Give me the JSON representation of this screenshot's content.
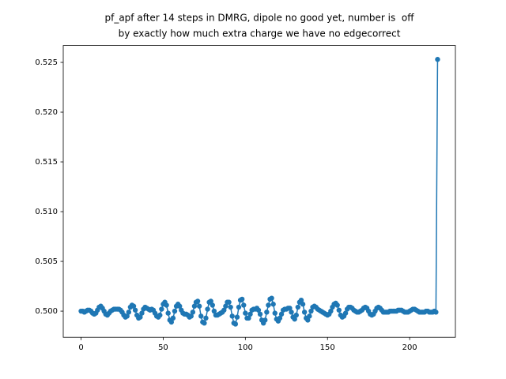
{
  "chart_data": {
    "type": "line",
    "title": [
      "pf_apf after 14 steps in DMRG, dipole no good yet, number is  off",
      "by exactly how much extra charge we have no edgecorrect"
    ],
    "color": "#1f77b4",
    "marker": true,
    "xlim": [
      -10.85,
      227.85
    ],
    "xticks": [
      0,
      50,
      100,
      150,
      200
    ],
    "ylim": [
      0.49737,
      0.5267
    ],
    "yticks": [
      {
        "value": 0.5,
        "label": "0.500"
      },
      0.505,
      {
        "value": 0.51,
        "label": "0.510"
      },
      0.515,
      {
        "value": 0.52,
        "label": "0.520"
      },
      0.525
    ],
    "x": [
      0,
      1,
      2,
      3,
      4,
      5,
      6,
      7,
      8,
      9,
      10,
      11,
      12,
      13,
      14,
      15,
      16,
      17,
      18,
      19,
      20,
      21,
      22,
      23,
      24,
      25,
      26,
      27,
      28,
      29,
      30,
      31,
      32,
      33,
      34,
      35,
      36,
      37,
      38,
      39,
      40,
      41,
      42,
      43,
      44,
      45,
      46,
      47,
      48,
      49,
      50,
      51,
      52,
      53,
      54,
      55,
      56,
      57,
      58,
      59,
      60,
      61,
      62,
      63,
      64,
      65,
      66,
      67,
      68,
      69,
      70,
      71,
      72,
      73,
      74,
      75,
      76,
      77,
      78,
      79,
      80,
      81,
      82,
      83,
      84,
      85,
      86,
      87,
      88,
      89,
      90,
      91,
      92,
      93,
      94,
      95,
      96,
      97,
      98,
      99,
      100,
      101,
      102,
      103,
      104,
      105,
      106,
      107,
      108,
      109,
      110,
      111,
      112,
      113,
      114,
      115,
      116,
      117,
      118,
      119,
      120,
      121,
      122,
      123,
      124,
      125,
      126,
      127,
      128,
      129,
      130,
      131,
      132,
      133,
      134,
      135,
      136,
      137,
      138,
      139,
      140,
      141,
      142,
      143,
      144,
      145,
      146,
      147,
      148,
      149,
      150,
      151,
      152,
      153,
      154,
      155,
      156,
      157,
      158,
      159,
      160,
      161,
      162,
      163,
      164,
      165,
      166,
      167,
      168,
      169,
      170,
      171,
      172,
      173,
      174,
      175,
      176,
      177,
      178,
      179,
      180,
      181,
      182,
      183,
      184,
      185,
      186,
      187,
      188,
      189,
      190,
      191,
      192,
      193,
      194,
      195,
      196,
      197,
      198,
      199,
      200,
      201,
      202,
      203,
      204,
      205,
      206,
      207,
      208,
      209,
      210,
      211,
      212,
      213,
      214,
      215,
      216,
      217
    ],
    "values": [
      0.5,
      0.5,
      0.4999,
      0.5,
      0.5001,
      0.5001,
      0.5,
      0.4998,
      0.4997,
      0.4998,
      0.5001,
      0.5004,
      0.5005,
      0.5003,
      0.5,
      0.4997,
      0.4996,
      0.4998,
      0.5,
      0.5001,
      0.5002,
      0.5002,
      0.5002,
      0.5002,
      0.5001,
      0.4999,
      0.4996,
      0.4994,
      0.4995,
      0.4999,
      0.5004,
      0.5006,
      0.5005,
      0.5001,
      0.4996,
      0.4993,
      0.4994,
      0.4998,
      0.5002,
      0.5004,
      0.5003,
      0.5002,
      0.5001,
      0.5002,
      0.5001,
      0.4998,
      0.4995,
      0.4994,
      0.4996,
      0.5002,
      0.5007,
      0.5009,
      0.5006,
      0.4998,
      0.4991,
      0.4989,
      0.4993,
      0.5,
      0.5005,
      0.5007,
      0.5005,
      0.5001,
      0.4998,
      0.4997,
      0.4997,
      0.4996,
      0.4994,
      0.4995,
      0.4999,
      0.5005,
      0.5009,
      0.501,
      0.5005,
      0.4995,
      0.4989,
      0.4988,
      0.4993,
      0.5002,
      0.5009,
      0.501,
      0.5006,
      0.5,
      0.4996,
      0.4996,
      0.4997,
      0.4998,
      0.4999,
      0.5001,
      0.5005,
      0.5009,
      0.5009,
      0.5004,
      0.4995,
      0.4988,
      0.4987,
      0.4994,
      0.5004,
      0.5011,
      0.5012,
      0.5006,
      0.4998,
      0.4993,
      0.4993,
      0.4997,
      0.5001,
      0.5002,
      0.5002,
      0.5003,
      0.5001,
      0.4997,
      0.4991,
      0.4988,
      0.4991,
      0.4999,
      0.5006,
      0.5012,
      0.5013,
      0.5007,
      0.4998,
      0.4992,
      0.499,
      0.4993,
      0.4997,
      0.5001,
      0.5002,
      0.5002,
      0.5003,
      0.5003,
      0.4999,
      0.4994,
      0.4992,
      0.4996,
      0.5004,
      0.5009,
      0.5011,
      0.5007,
      0.4999,
      0.4993,
      0.4991,
      0.4995,
      0.5,
      0.5004,
      0.5005,
      0.5004,
      0.5002,
      0.5001,
      0.5,
      0.4999,
      0.4998,
      0.4997,
      0.4996,
      0.4997,
      0.5,
      0.5004,
      0.5007,
      0.5008,
      0.5006,
      0.5001,
      0.4996,
      0.4994,
      0.4995,
      0.4998,
      0.5002,
      0.5004,
      0.5004,
      0.5003,
      0.5001,
      0.5,
      0.4999,
      0.4999,
      0.5,
      0.5001,
      0.5003,
      0.5004,
      0.5003,
      0.5,
      0.4997,
      0.4996,
      0.4997,
      0.5,
      0.5003,
      0.5004,
      0.5003,
      0.5001,
      0.4999,
      0.4999,
      0.4999,
      0.4999,
      0.5,
      0.5,
      0.5,
      0.5,
      0.5,
      0.5001,
      0.5001,
      0.5001,
      0.5,
      0.4999,
      0.4999,
      0.4999,
      0.5,
      0.5001,
      0.5002,
      0.5002,
      0.5001,
      0.5,
      0.4999,
      0.4999,
      0.4999,
      0.4999,
      0.5,
      0.5,
      0.4999,
      0.4999,
      0.4999,
      0.5,
      0.4999,
      0.5253
    ]
  }
}
